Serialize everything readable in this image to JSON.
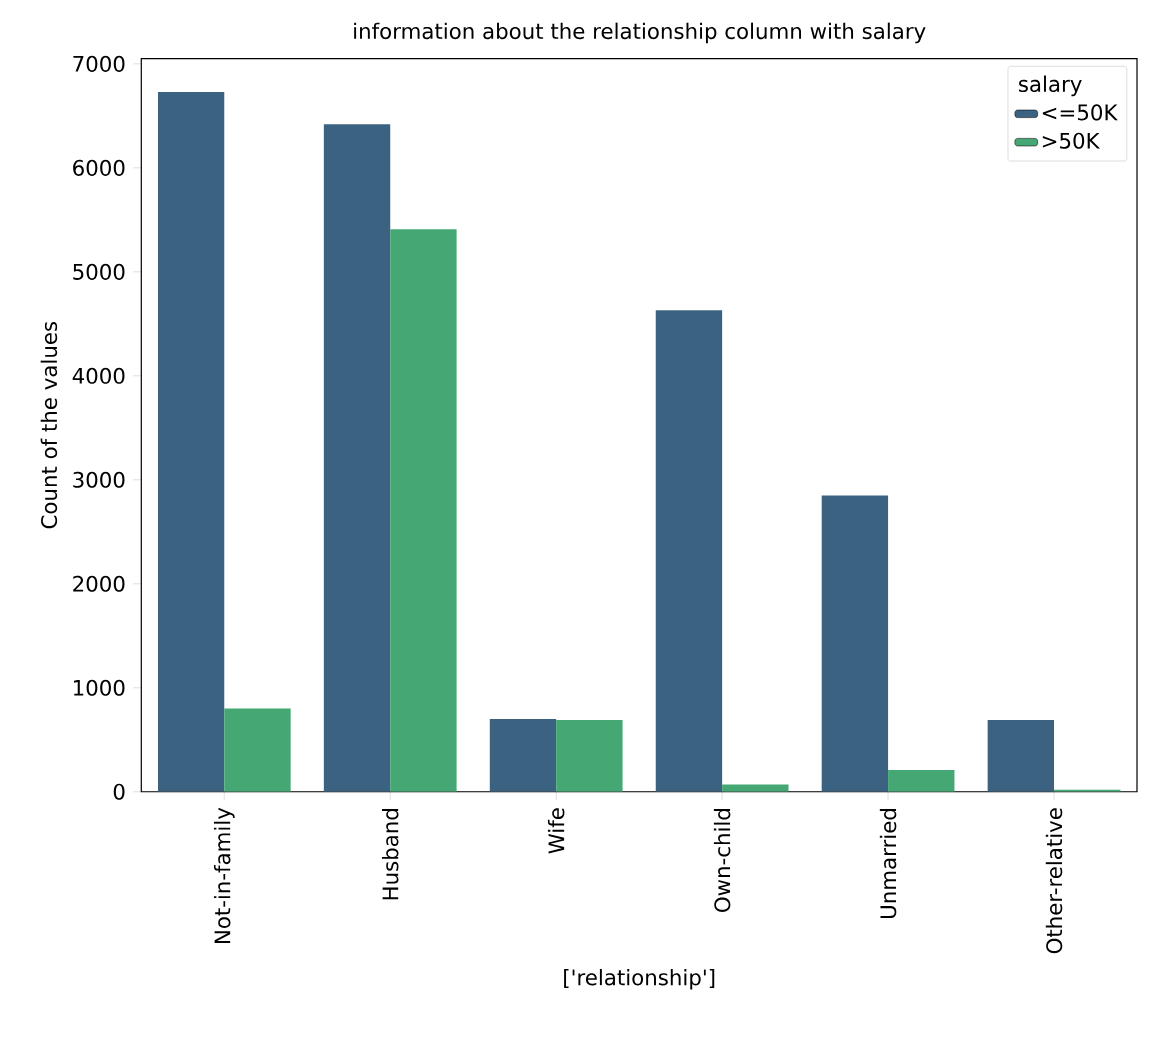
{
  "chart_data": {
    "type": "bar",
    "title": "information about the relationship column with salary",
    "xlabel": "['relationship']",
    "ylabel": "Count of the values",
    "legend_title": "salary",
    "legend": "top right",
    "categories": [
      "Not-in-family",
      "Husband",
      "Wife",
      "Own-child",
      "Unmarried",
      "Other-relative"
    ],
    "series": [
      {
        "name": "<=50K",
        "color": "#3b6381",
        "values": [
          6730,
          6420,
          700,
          4630,
          2850,
          690
        ]
      },
      {
        "name": ">50K",
        "color": "#45a874",
        "values": [
          800,
          5410,
          690,
          70,
          210,
          20
        ]
      }
    ],
    "ylim": [
      0,
      7050
    ],
    "yticks": [
      0,
      1000,
      2000,
      3000,
      4000,
      5000,
      6000,
      7000
    ]
  }
}
